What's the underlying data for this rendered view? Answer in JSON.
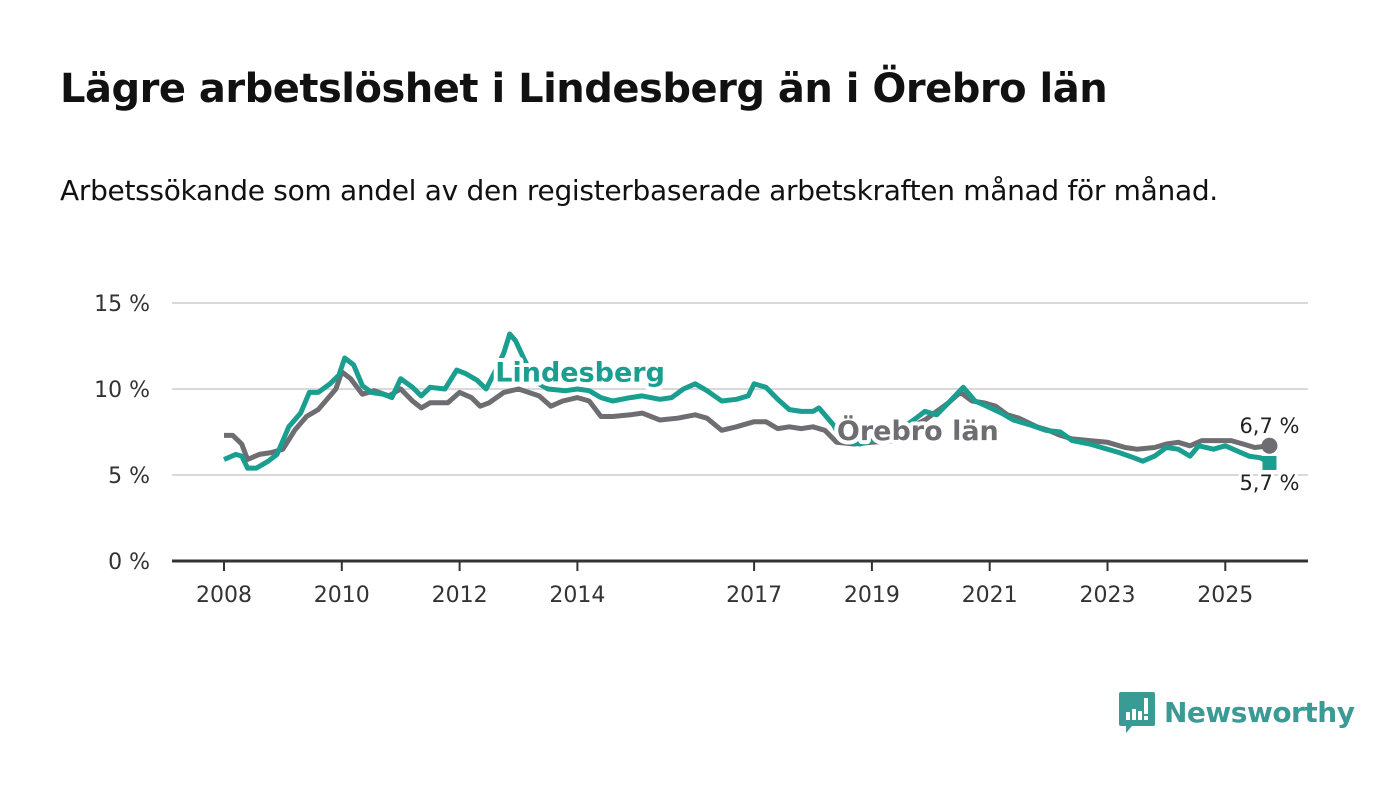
{
  "header": {
    "title": "Lägre arbetslöshet i Lindesberg än i Örebro län",
    "subtitle": "Arbetssökande som andel av den registerbaserade arbetskraften månad för månad."
  },
  "brand": {
    "name": "Newsworthy",
    "icon": "newsworthy-logo-icon",
    "color": "#3a9a94"
  },
  "chart_data": {
    "type": "line",
    "title": "Lägre arbetslöshet i Lindesberg än i Örebro län",
    "subtitle": "Arbetssökande som andel av den registerbaserade arbetskraften månad för månad.",
    "xlabel": "",
    "ylabel": "",
    "xlim": [
      2007.1,
      2026.8
    ],
    "ylim": [
      0,
      15
    ],
    "grid": true,
    "legend": "inline labels",
    "x_ticks": [
      {
        "value": 2008,
        "label": "2008"
      },
      {
        "value": 2010,
        "label": "2010"
      },
      {
        "value": 2012,
        "label": "2012"
      },
      {
        "value": 2014,
        "label": "2014"
      },
      {
        "value": 2017,
        "label": "2017"
      },
      {
        "value": 2019,
        "label": "2019"
      },
      {
        "value": 2021,
        "label": "2021"
      },
      {
        "value": 2023,
        "label": "2023"
      },
      {
        "value": 2025,
        "label": "2025"
      }
    ],
    "y_ticks": [
      {
        "value": 0,
        "label": "0 %"
      },
      {
        "value": 5,
        "label": "5 %"
      },
      {
        "value": 10,
        "label": "10 %"
      },
      {
        "value": 15,
        "label": "15 %"
      }
    ],
    "series": [
      {
        "name": "Örebro län",
        "label": "Örebro län",
        "color": "#6e6d72",
        "end_label": "6,7 %",
        "end_value": 6.7,
        "points": [
          [
            2008.0,
            7.3
          ],
          [
            2008.15,
            7.3
          ],
          [
            2008.3,
            6.8
          ],
          [
            2008.4,
            5.9
          ],
          [
            2008.6,
            6.2
          ],
          [
            2008.8,
            6.3
          ],
          [
            2009.0,
            6.5
          ],
          [
            2009.2,
            7.6
          ],
          [
            2009.4,
            8.4
          ],
          [
            2009.6,
            8.8
          ],
          [
            2009.75,
            9.4
          ],
          [
            2009.9,
            10.0
          ],
          [
            2010.0,
            11.0
          ],
          [
            2010.15,
            10.6
          ],
          [
            2010.35,
            9.7
          ],
          [
            2010.55,
            9.9
          ],
          [
            2010.8,
            9.6
          ],
          [
            2011.0,
            10.0
          ],
          [
            2011.2,
            9.3
          ],
          [
            2011.35,
            8.9
          ],
          [
            2011.5,
            9.2
          ],
          [
            2011.8,
            9.2
          ],
          [
            2012.0,
            9.8
          ],
          [
            2012.2,
            9.5
          ],
          [
            2012.35,
            9.0
          ],
          [
            2012.5,
            9.2
          ],
          [
            2012.75,
            9.8
          ],
          [
            2013.0,
            10.0
          ],
          [
            2013.35,
            9.6
          ],
          [
            2013.55,
            9.0
          ],
          [
            2013.75,
            9.3
          ],
          [
            2014.0,
            9.5
          ],
          [
            2014.2,
            9.3
          ],
          [
            2014.4,
            8.4
          ],
          [
            2014.6,
            8.4
          ],
          [
            2014.9,
            8.5
          ],
          [
            2015.1,
            8.6
          ],
          [
            2015.4,
            8.2
          ],
          [
            2015.7,
            8.3
          ],
          [
            2016.0,
            8.5
          ],
          [
            2016.2,
            8.3
          ],
          [
            2016.45,
            7.6
          ],
          [
            2016.7,
            7.8
          ],
          [
            2017.0,
            8.1
          ],
          [
            2017.2,
            8.1
          ],
          [
            2017.4,
            7.7
          ],
          [
            2017.6,
            7.8
          ],
          [
            2017.8,
            7.7
          ],
          [
            2018.0,
            7.8
          ],
          [
            2018.2,
            7.6
          ],
          [
            2018.4,
            6.9
          ],
          [
            2018.7,
            6.8
          ],
          [
            2019.0,
            6.9
          ],
          [
            2019.4,
            7.0
          ],
          [
            2019.6,
            7.7
          ],
          [
            2019.9,
            8.2
          ],
          [
            2020.1,
            8.7
          ],
          [
            2020.3,
            9.2
          ],
          [
            2020.5,
            9.8
          ],
          [
            2020.7,
            9.3
          ],
          [
            2020.9,
            9.2
          ],
          [
            2021.1,
            9.0
          ],
          [
            2021.3,
            8.5
          ],
          [
            2021.5,
            8.3
          ],
          [
            2021.8,
            7.8
          ],
          [
            2022.0,
            7.6
          ],
          [
            2022.2,
            7.3
          ],
          [
            2022.4,
            7.1
          ],
          [
            2022.7,
            7.0
          ],
          [
            2023.0,
            6.9
          ],
          [
            2023.3,
            6.6
          ],
          [
            2023.5,
            6.5
          ],
          [
            2023.8,
            6.6
          ],
          [
            2024.0,
            6.8
          ],
          [
            2024.2,
            6.9
          ],
          [
            2024.4,
            6.7
          ],
          [
            2024.6,
            7.0
          ],
          [
            2024.9,
            7.0
          ],
          [
            2025.1,
            7.0
          ],
          [
            2025.3,
            6.8
          ],
          [
            2025.5,
            6.6
          ],
          [
            2025.75,
            6.7
          ]
        ]
      },
      {
        "name": "Lindesberg",
        "label": "Lindesberg",
        "color": "#1a9e8f",
        "end_label": "5,7 %",
        "end_value": 5.7,
        "points": [
          [
            2008.0,
            5.9
          ],
          [
            2008.2,
            6.2
          ],
          [
            2008.3,
            6.1
          ],
          [
            2008.4,
            5.4
          ],
          [
            2008.55,
            5.4
          ],
          [
            2008.75,
            5.8
          ],
          [
            2008.9,
            6.2
          ],
          [
            2009.1,
            7.8
          ],
          [
            2009.3,
            8.6
          ],
          [
            2009.45,
            9.8
          ],
          [
            2009.6,
            9.8
          ],
          [
            2009.8,
            10.3
          ],
          [
            2009.95,
            10.8
          ],
          [
            2010.05,
            11.8
          ],
          [
            2010.2,
            11.4
          ],
          [
            2010.35,
            10.2
          ],
          [
            2010.5,
            9.8
          ],
          [
            2010.7,
            9.7
          ],
          [
            2010.85,
            9.5
          ],
          [
            2011.0,
            10.6
          ],
          [
            2011.2,
            10.1
          ],
          [
            2011.35,
            9.6
          ],
          [
            2011.5,
            10.1
          ],
          [
            2011.75,
            10.0
          ],
          [
            2011.95,
            11.1
          ],
          [
            2012.1,
            10.9
          ],
          [
            2012.3,
            10.5
          ],
          [
            2012.45,
            10.0
          ],
          [
            2012.6,
            11.0
          ],
          [
            2012.75,
            12.1
          ],
          [
            2012.85,
            13.2
          ],
          [
            2012.95,
            12.8
          ],
          [
            2013.1,
            11.7
          ],
          [
            2013.3,
            10.4
          ],
          [
            2013.5,
            10.0
          ],
          [
            2013.8,
            9.9
          ],
          [
            2014.0,
            10.0
          ],
          [
            2014.2,
            9.9
          ],
          [
            2014.4,
            9.5
          ],
          [
            2014.6,
            9.3
          ],
          [
            2014.9,
            9.5
          ],
          [
            2015.1,
            9.6
          ],
          [
            2015.4,
            9.4
          ],
          [
            2015.6,
            9.5
          ],
          [
            2015.8,
            10.0
          ],
          [
            2016.0,
            10.3
          ],
          [
            2016.2,
            9.9
          ],
          [
            2016.45,
            9.3
          ],
          [
            2016.7,
            9.4
          ],
          [
            2016.9,
            9.6
          ],
          [
            2017.0,
            10.3
          ],
          [
            2017.2,
            10.1
          ],
          [
            2017.4,
            9.4
          ],
          [
            2017.6,
            8.8
          ],
          [
            2017.8,
            8.7
          ],
          [
            2018.0,
            8.7
          ],
          [
            2018.1,
            8.9
          ],
          [
            2018.35,
            7.9
          ],
          [
            2018.5,
            7.0
          ],
          [
            2018.8,
            6.8
          ],
          [
            2019.0,
            7.0
          ],
          [
            2019.4,
            7.2
          ],
          [
            2019.55,
            7.8
          ],
          [
            2019.75,
            8.3
          ],
          [
            2019.9,
            8.7
          ],
          [
            2020.1,
            8.5
          ],
          [
            2020.3,
            9.2
          ],
          [
            2020.55,
            10.1
          ],
          [
            2020.75,
            9.3
          ],
          [
            2020.95,
            9.0
          ],
          [
            2021.2,
            8.6
          ],
          [
            2021.4,
            8.2
          ],
          [
            2021.7,
            7.9
          ],
          [
            2021.95,
            7.6
          ],
          [
            2022.2,
            7.5
          ],
          [
            2022.4,
            7.0
          ],
          [
            2022.7,
            6.8
          ],
          [
            2022.9,
            6.6
          ],
          [
            2023.2,
            6.3
          ],
          [
            2023.45,
            6.0
          ],
          [
            2023.6,
            5.8
          ],
          [
            2023.8,
            6.1
          ],
          [
            2024.0,
            6.6
          ],
          [
            2024.2,
            6.5
          ],
          [
            2024.4,
            6.1
          ],
          [
            2024.55,
            6.7
          ],
          [
            2024.8,
            6.5
          ],
          [
            2025.0,
            6.7
          ],
          [
            2025.2,
            6.4
          ],
          [
            2025.4,
            6.1
          ],
          [
            2025.6,
            6.0
          ],
          [
            2025.75,
            5.7
          ]
        ]
      }
    ],
    "annotations": [
      {
        "text": "Lindesberg",
        "series": "Lindesberg",
        "x": 2013.2,
        "y": 10.9
      },
      {
        "text": "Örebro län",
        "series": "Örebro län",
        "x": 2019.0,
        "y": 7.5
      },
      {
        "text": "6,7 %",
        "series": "Örebro län",
        "x": 2025.75,
        "y": 6.7,
        "position": "above"
      },
      {
        "text": "5,7 %",
        "series": "Lindesberg",
        "x": 2025.75,
        "y": 5.7,
        "position": "below"
      }
    ]
  }
}
